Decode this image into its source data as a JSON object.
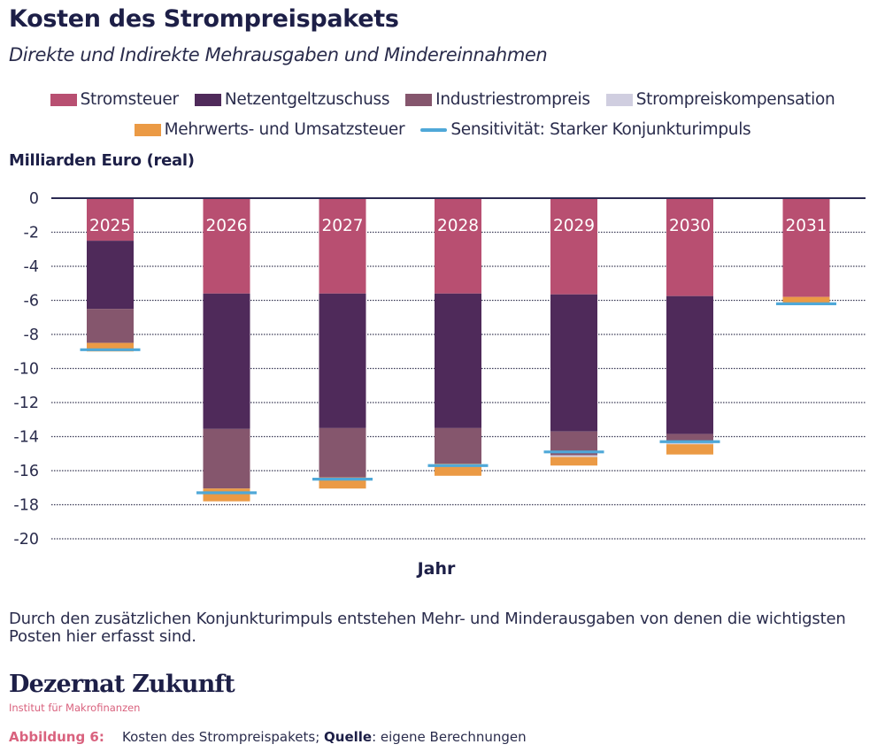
{
  "header": {
    "title": "Kosten des Strompreispakets",
    "subtitle": "Direkte und Indirekte Mehrausgaben und Mindereinnahmen"
  },
  "legend": {
    "items": [
      {
        "label": "Stromsteuer",
        "color": "#b84f71",
        "type": "bar"
      },
      {
        "label": "Netzentgeltzuschuss",
        "color": "#4f2a5a",
        "type": "bar"
      },
      {
        "label": "Industriestrompreis",
        "color": "#85566d",
        "type": "bar"
      },
      {
        "label": "Strompreiskompensation",
        "color": "#d0cee0",
        "type": "bar"
      },
      {
        "label": "Mehrwerts- und Umsatzsteuer",
        "color": "#eb9a45",
        "type": "bar"
      },
      {
        "label": "Sensitivität: Starker Konjunkturimpuls",
        "color": "#4fa8d8",
        "type": "line"
      }
    ]
  },
  "chart_data": {
    "type": "bar",
    "stacked": true,
    "title": "Kosten des Strompreispakets",
    "subtitle": "Direkte und Indirekte Mehrausgaben und Mindereinnahmen",
    "xlabel": "Jahr",
    "ylabel": "Milliarden Euro (real)",
    "ylim": [
      -20,
      0
    ],
    "yticks": [
      0,
      -2,
      -4,
      -6,
      -8,
      -10,
      -12,
      -14,
      -16,
      -18,
      -20
    ],
    "grid": true,
    "legend_position": "top",
    "category_labels_position": "inside-top-of-bar",
    "categories": [
      "2025",
      "2026",
      "2027",
      "2028",
      "2029",
      "2030",
      "2031"
    ],
    "series": [
      {
        "name": "Stromsteuer",
        "color": "#b84f71",
        "values": [
          -2.5,
          -5.6,
          -5.6,
          -5.6,
          -5.65,
          -5.75,
          -5.8
        ]
      },
      {
        "name": "Netzentgeltzuschuss",
        "color": "#4f2a5a",
        "values": [
          -4.0,
          -7.95,
          -7.9,
          -7.9,
          -8.05,
          -8.1,
          0
        ]
      },
      {
        "name": "Industriestrompreis",
        "color": "#85566d",
        "values": [
          -2.0,
          -3.5,
          -2.9,
          -2.1,
          -1.4,
          -0.4,
          0
        ]
      },
      {
        "name": "Strompreiskompensation",
        "color": "#d0cee0",
        "values": [
          0,
          0,
          0,
          0,
          -0.1,
          -0.2,
          0
        ]
      },
      {
        "name": "Mehrwerts- und Umsatzsteuer",
        "color": "#eb9a45",
        "values": [
          -0.5,
          -0.75,
          -0.65,
          -0.7,
          -0.5,
          -0.6,
          -0.35
        ]
      }
    ],
    "lines": [
      {
        "name": "Sensitivität: Starker Konjunkturimpuls",
        "color": "#4fa8d8",
        "style": "marker-dash",
        "values": [
          -8.9,
          -17.3,
          -16.5,
          -15.7,
          -14.9,
          -14.3,
          -6.2
        ]
      }
    ]
  },
  "axis": {
    "y_unit_label": "Milliarden Euro (real)",
    "x_label": "Jahr"
  },
  "note": "Durch den zusätzlichen Konjunkturimpuls entstehen Mehr- und Minderausgaben von denen die wichtigsten Posten hier erfasst sind.",
  "footer": {
    "brand": "Dezernat Zukunft",
    "brand_sub": "Institut für Makrofinanzen",
    "figure_label": "Abbildung 6:",
    "caption_text": "Kosten des Strompreispakets; ",
    "source_label": "Quelle",
    "source_text": ": eigene Berechnungen"
  }
}
